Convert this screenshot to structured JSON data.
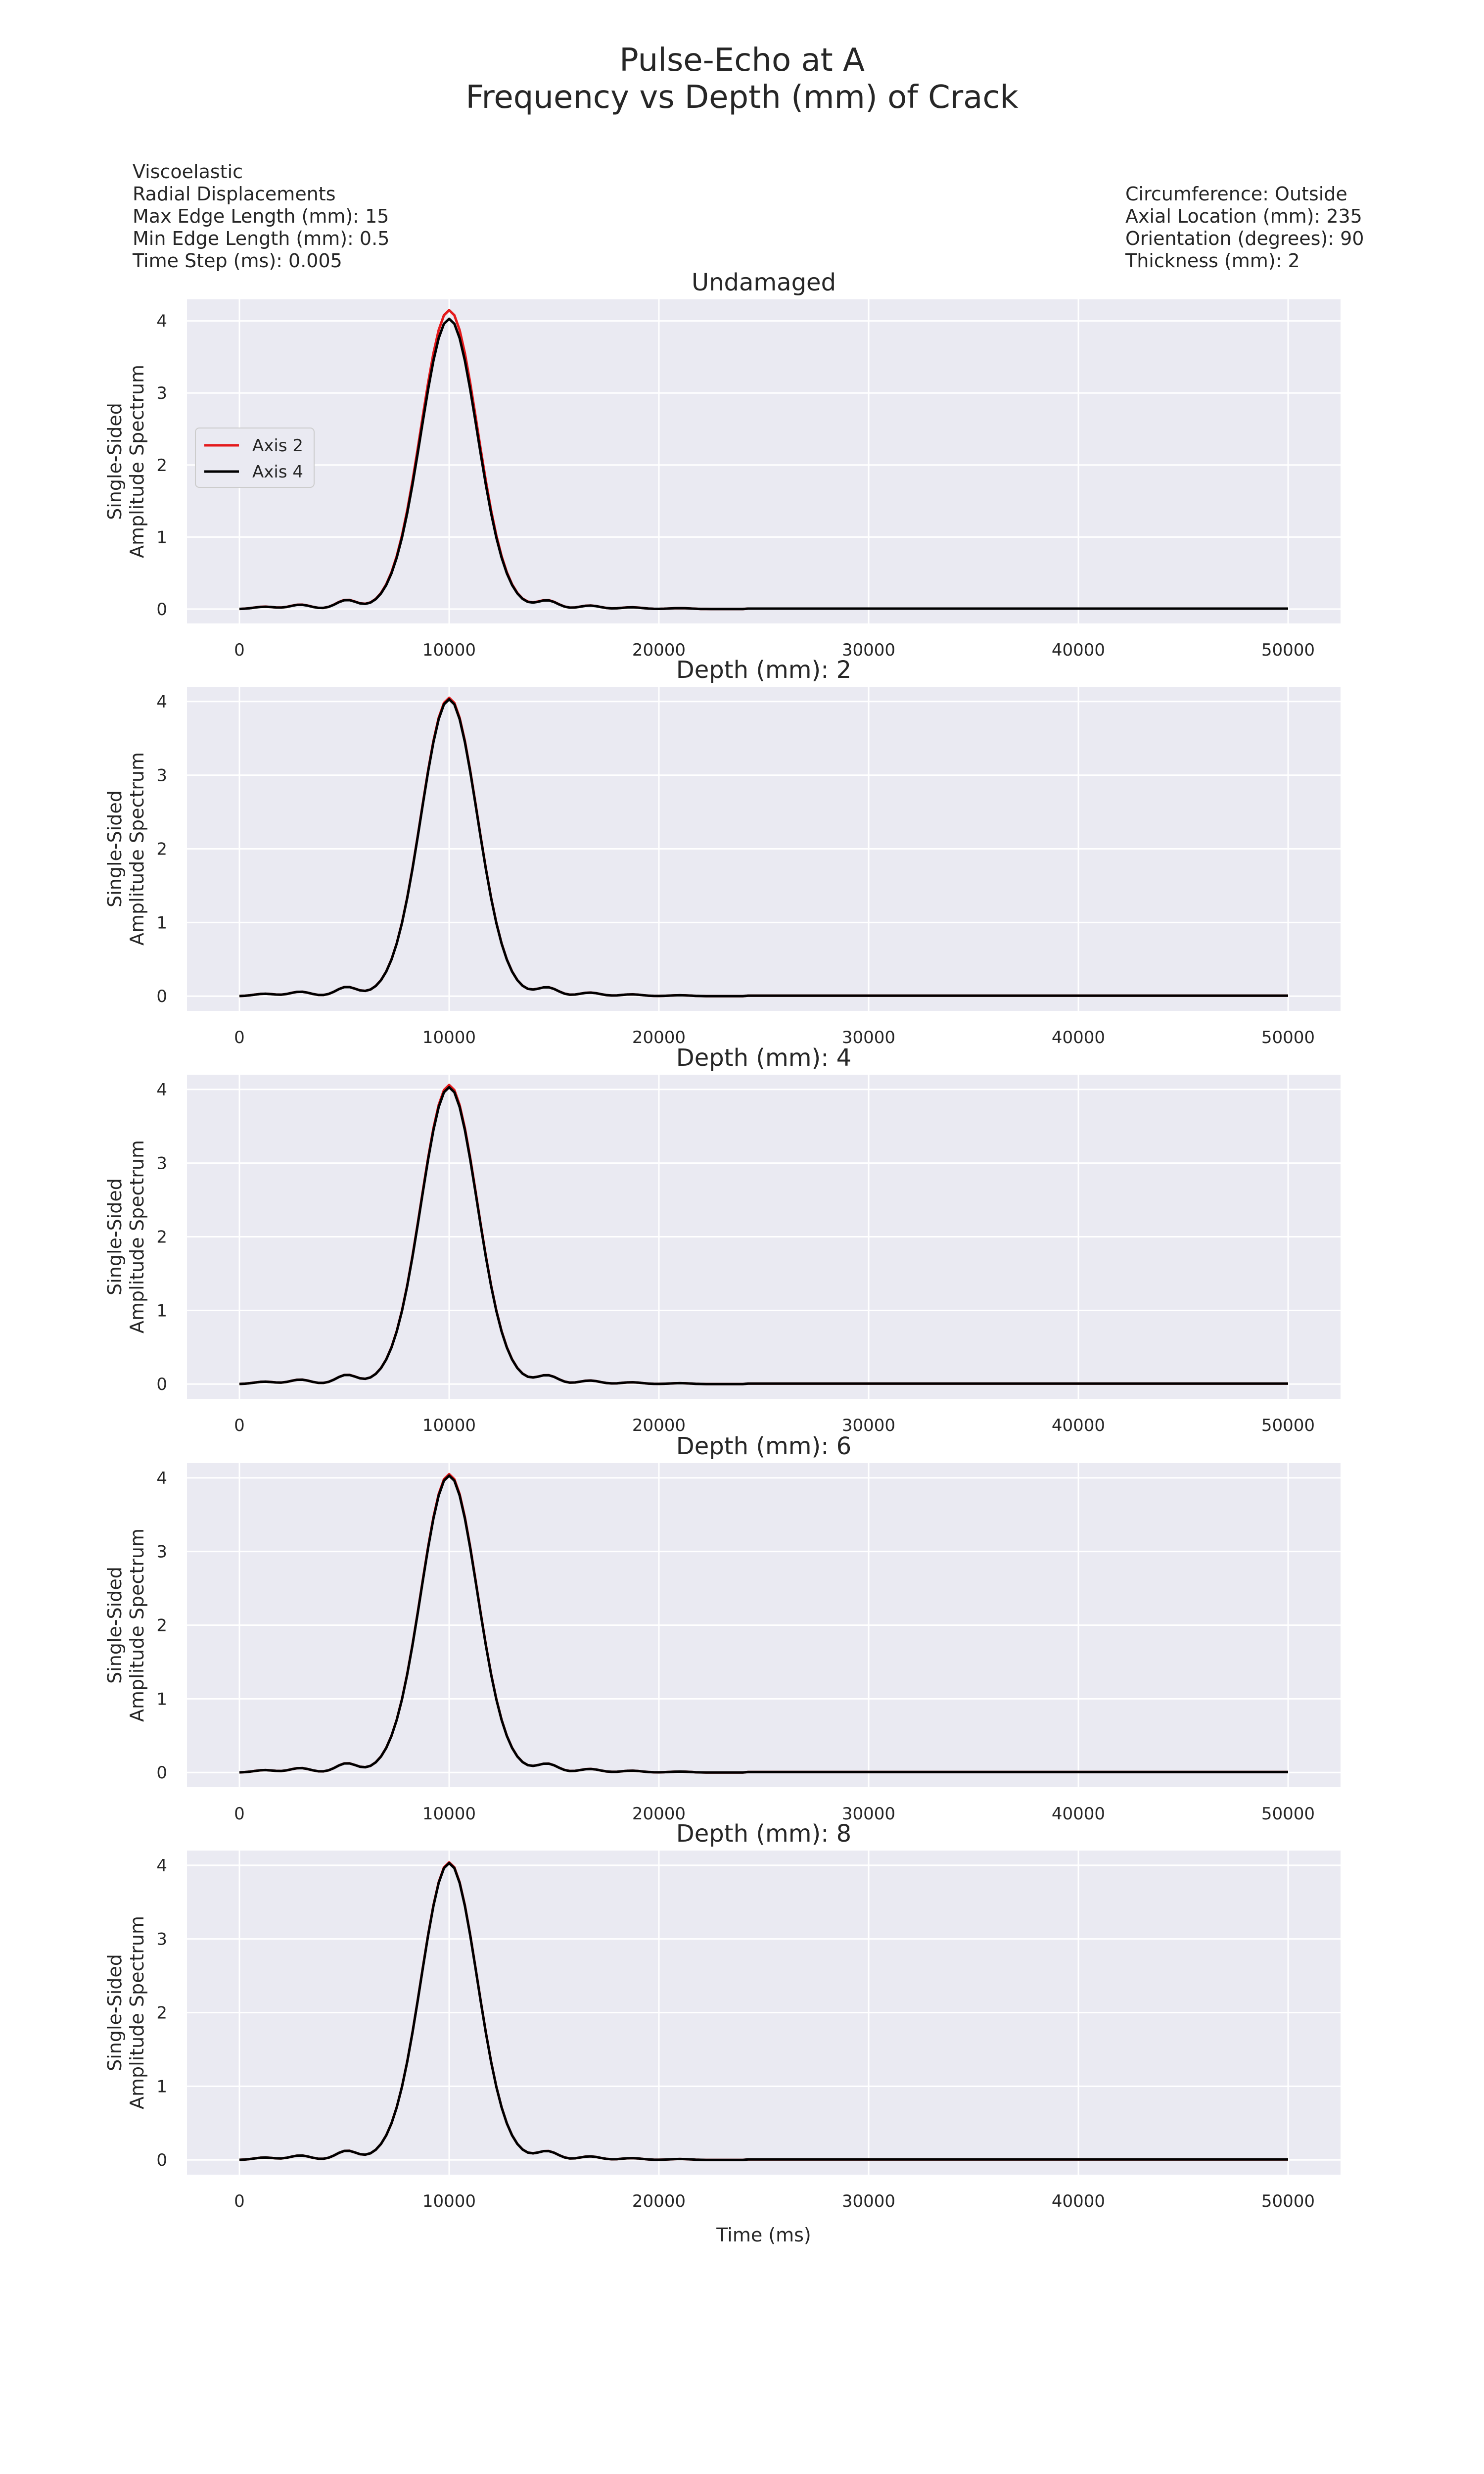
{
  "title": {
    "line1": "Pulse-Echo at A",
    "line2": "Frequency vs Depth (mm) of Crack"
  },
  "info_left": [
    "Viscoelastic",
    "Radial Displacements",
    "Max Edge Length (mm): 15",
    "Min Edge Length (mm): 0.5",
    "Time Step (ms): 0.005"
  ],
  "info_right": [
    "Circumference: Outside",
    "Axial Location (mm): 235",
    "Orientation (degrees): 90",
    "Thickness (mm): 2"
  ],
  "colors": {
    "axis2": "#e41a1c",
    "axis4": "#000000",
    "plot_bg": "#eaeaf2",
    "grid": "#ffffff"
  },
  "chart_data": [
    {
      "type": "line",
      "title": "Undamaged",
      "ylabel": [
        "Single-Sided",
        "Amplitude Spectrum"
      ],
      "xlabel": "",
      "xlim": [
        -2500,
        52500
      ],
      "ylim": [
        -0.2,
        4.3
      ],
      "xticks": [
        0,
        10000,
        20000,
        30000,
        40000,
        50000
      ],
      "yticks": [
        0,
        1,
        2,
        3,
        4
      ],
      "grid": true,
      "legend": {
        "placement": "center-left",
        "entries": [
          "Axis 2",
          "Axis 4"
        ]
      },
      "series": [
        {
          "name": "Axis 2",
          "color": "axis2",
          "peak": 4.15
        },
        {
          "name": "Axis 4",
          "color": "axis4",
          "peak": 4.03
        }
      ]
    },
    {
      "type": "line",
      "title": "Depth (mm): 2",
      "ylabel": [
        "Single-Sided",
        "Amplitude Spectrum"
      ],
      "xlabel": "",
      "xlim": [
        -2500,
        52500
      ],
      "ylim": [
        -0.2,
        4.2
      ],
      "xticks": [
        0,
        10000,
        20000,
        30000,
        40000,
        50000
      ],
      "yticks": [
        0,
        1,
        2,
        3,
        4
      ],
      "grid": true,
      "series": [
        {
          "name": "Axis 2",
          "color": "axis2",
          "peak": 4.05
        },
        {
          "name": "Axis 4",
          "color": "axis4",
          "peak": 4.03
        }
      ]
    },
    {
      "type": "line",
      "title": "Depth (mm): 4",
      "ylabel": [
        "Single-Sided",
        "Amplitude Spectrum"
      ],
      "xlabel": "",
      "xlim": [
        -2500,
        52500
      ],
      "ylim": [
        -0.2,
        4.2
      ],
      "xticks": [
        0,
        10000,
        20000,
        30000,
        40000,
        50000
      ],
      "yticks": [
        0,
        1,
        2,
        3,
        4
      ],
      "grid": true,
      "series": [
        {
          "name": "Axis 2",
          "color": "axis2",
          "peak": 4.06
        },
        {
          "name": "Axis 4",
          "color": "axis4",
          "peak": 4.03
        }
      ]
    },
    {
      "type": "line",
      "title": "Depth (mm): 6",
      "ylabel": [
        "Single-Sided",
        "Amplitude Spectrum"
      ],
      "xlabel": "",
      "xlim": [
        -2500,
        52500
      ],
      "ylim": [
        -0.2,
        4.2
      ],
      "xticks": [
        0,
        10000,
        20000,
        30000,
        40000,
        50000
      ],
      "yticks": [
        0,
        1,
        2,
        3,
        4
      ],
      "grid": true,
      "series": [
        {
          "name": "Axis 2",
          "color": "axis2",
          "peak": 4.05
        },
        {
          "name": "Axis 4",
          "color": "axis4",
          "peak": 4.03
        }
      ]
    },
    {
      "type": "line",
      "title": "Depth (mm): 8",
      "ylabel": [
        "Single-Sided",
        "Amplitude Spectrum"
      ],
      "xlabel": "Time (ms)",
      "xlim": [
        -2500,
        52500
      ],
      "ylim": [
        -0.2,
        4.2
      ],
      "xticks": [
        0,
        10000,
        20000,
        30000,
        40000,
        50000
      ],
      "yticks": [
        0,
        1,
        2,
        3,
        4
      ],
      "grid": true,
      "series": [
        {
          "name": "Axis 2",
          "color": "axis2",
          "peak": 4.04
        },
        {
          "name": "Axis 4",
          "color": "axis4",
          "peak": 4.03
        }
      ]
    }
  ]
}
